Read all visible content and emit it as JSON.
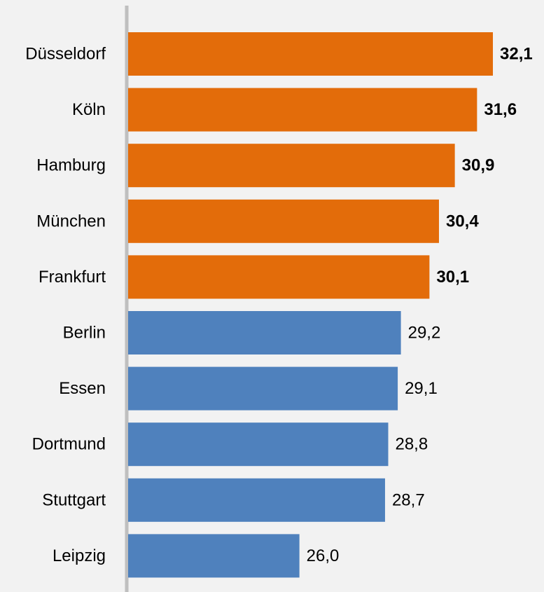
{
  "chart_data": {
    "type": "bar",
    "orientation": "horizontal",
    "categories": [
      "Düsseldorf",
      "Köln",
      "Hamburg",
      "München",
      "Frankfurt",
      "Berlin",
      "Essen",
      "Dortmund",
      "Stuttgart",
      "Leipzig"
    ],
    "values": [
      32.1,
      31.6,
      30.9,
      30.4,
      30.1,
      29.2,
      29.1,
      28.8,
      28.7,
      26.0
    ],
    "value_labels": [
      "32,1",
      "31,6",
      "30,9",
      "30,4",
      "30,1",
      "29,2",
      "29,1",
      "28,8",
      "28,7",
      "26,0"
    ],
    "highlighted": [
      true,
      true,
      true,
      true,
      true,
      false,
      false,
      false,
      false,
      false
    ],
    "title": "",
    "xlabel": "",
    "ylabel": "",
    "xlim": [
      20.6,
      32.1
    ],
    "grid": false,
    "colors": {
      "highlight": "#e36c0a",
      "default": "#4f81bd",
      "axis": "#bfbfbf",
      "background": "#f2f2f2"
    }
  }
}
